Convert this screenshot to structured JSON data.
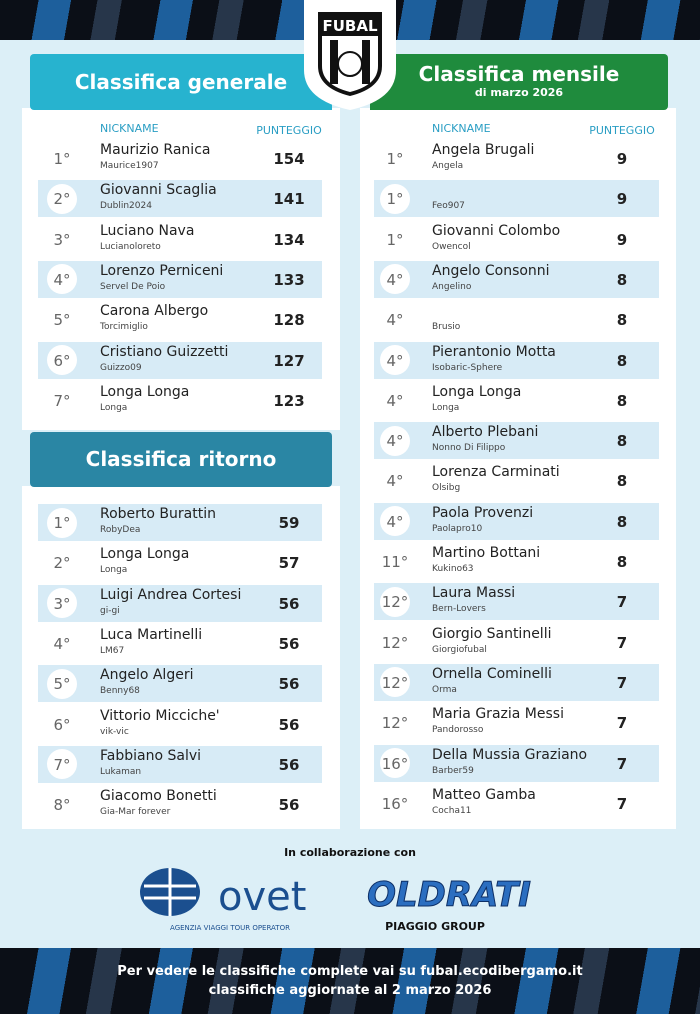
{
  "logo": {
    "text": "FUBAL"
  },
  "general": {
    "title": "Classifica generale",
    "columns": [
      "NICKNAME",
      "PUNTEGGIO"
    ],
    "rows": [
      {
        "rank": "1°",
        "name": "Maurizio Ranica",
        "nick": "Maurice1907",
        "score": 154
      },
      {
        "rank": "2°",
        "name": "Giovanni Scaglia",
        "nick": "Dublin2024",
        "score": 141
      },
      {
        "rank": "3°",
        "name": "Luciano Nava",
        "nick": "Lucianoloreto",
        "score": 134
      },
      {
        "rank": "4°",
        "name": "Lorenzo Perniceni",
        "nick": "Servel De Poio",
        "score": 133
      },
      {
        "rank": "5°",
        "name": "Carona Albergo",
        "nick": "Torcimiglio",
        "score": 128
      },
      {
        "rank": "6°",
        "name": "Cristiano Guizzetti",
        "nick": "Guizzo09",
        "score": 127
      },
      {
        "rank": "7°",
        "name": "Longa Longa",
        "nick": "Longa",
        "score": 123
      }
    ]
  },
  "ritorno": {
    "title": "Classifica ritorno",
    "rows": [
      {
        "rank": "1°",
        "name": "Roberto Burattin",
        "nick": "RobyDea",
        "score": 59
      },
      {
        "rank": "2°",
        "name": "Longa Longa",
        "nick": "Longa",
        "score": 57
      },
      {
        "rank": "3°",
        "name": "Luigi Andrea Cortesi",
        "nick": "gi-gi",
        "score": 56
      },
      {
        "rank": "4°",
        "name": "Luca Martinelli",
        "nick": "LM67",
        "score": 56
      },
      {
        "rank": "5°",
        "name": "Angelo Algeri",
        "nick": "Benny68",
        "score": 56
      },
      {
        "rank": "6°",
        "name": "Vittorio Micciche'",
        "nick": "vik-vic",
        "score": 56
      },
      {
        "rank": "7°",
        "name": "Fabbiano Salvi",
        "nick": "Lukaman",
        "score": 56
      },
      {
        "rank": "8°",
        "name": "Giacomo Bonetti",
        "nick": "Gia-Mar forever",
        "score": 56
      }
    ]
  },
  "monthly": {
    "title": "Classifica mensile",
    "subtitle": "di marzo 2026",
    "columns": [
      "NICKNAME",
      "PUNTEGGIO"
    ],
    "rows": [
      {
        "rank": "1°",
        "name": "Angela Brugali",
        "nick": "Angela",
        "score": 9
      },
      {
        "rank": "1°",
        "nick": "Feo907",
        "score": 9
      },
      {
        "rank": "1°",
        "name": "Giovanni Colombo",
        "nick": "Owencol",
        "score": 9
      },
      {
        "rank": "4°",
        "name": "Angelo Consonni",
        "nick": "Angelino",
        "score": 8
      },
      {
        "rank": "4°",
        "nick": "Brusio",
        "score": 8
      },
      {
        "rank": "4°",
        "name": "Pierantonio Motta",
        "nick": "Isobaric-Sphere",
        "score": 8
      },
      {
        "rank": "4°",
        "name": "Longa Longa",
        "nick": "Longa",
        "score": 8
      },
      {
        "rank": "4°",
        "name": "Alberto Plebani",
        "nick": "Nonno Di Filippo",
        "score": 8
      },
      {
        "rank": "4°",
        "name": "Lorenza Carminati",
        "nick": "Olsibg",
        "score": 8
      },
      {
        "rank": "4°",
        "name": "Paola Provenzi",
        "nick": "Paolapro10",
        "score": 8
      },
      {
        "rank": "11°",
        "name": "Martino Bottani",
        "nick": "Kukino63",
        "score": 8
      },
      {
        "rank": "12°",
        "name": "Laura Massi",
        "nick": "Bern-Lovers",
        "score": 7
      },
      {
        "rank": "12°",
        "name": "Giorgio Santinelli",
        "nick": "Giorgiofubal",
        "score": 7
      },
      {
        "rank": "12°",
        "name": "Ornella Cominelli",
        "nick": "Orma",
        "score": 7
      },
      {
        "rank": "12°",
        "name": "Maria Grazia Messi",
        "nick": "Pandorosso",
        "score": 7
      },
      {
        "rank": "16°",
        "name": "Della Mussia Graziano",
        "nick": "Barber59",
        "score": 7
      },
      {
        "rank": "16°",
        "name": "Matteo Gamba",
        "nick": "Cocha11",
        "score": 7
      }
    ]
  },
  "partners": {
    "intro": "In collaborazione con",
    "items": [
      {
        "name": "ovet",
        "tagline": "AGENZIA VIAGGI TOUR OPERATOR"
      },
      {
        "name": "OLDRATI",
        "tagline": "PIAGGIO GROUP"
      }
    ]
  },
  "footer": {
    "lines": [
      "Per vedere le classifiche complete vai su fubal.ecodibergamo.it",
      "classifiche aggiornate al 2 marzo 2026"
    ]
  }
}
